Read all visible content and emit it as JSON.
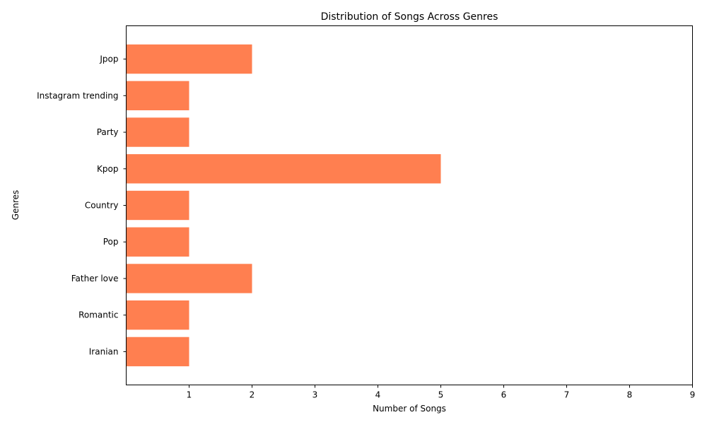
{
  "chart_data": {
    "type": "bar",
    "orientation": "horizontal",
    "title": "Distribution of Songs Across Genres",
    "xlabel": "Number of Songs",
    "ylabel": "Genres",
    "categories": [
      "Iranian",
      "Romantic",
      "Father love",
      "Pop",
      "Country",
      "Kpop",
      "Party",
      "Instagram trending",
      "Jpop"
    ],
    "values": [
      1,
      1,
      2,
      1,
      1,
      5,
      1,
      1,
      2
    ],
    "xlim": [
      0,
      9
    ],
    "xticks": [
      "1",
      "2",
      "3",
      "4",
      "5",
      "6",
      "7",
      "8",
      "9"
    ],
    "bar_color": "#ff7f50",
    "grid": false,
    "legend": "none"
  }
}
